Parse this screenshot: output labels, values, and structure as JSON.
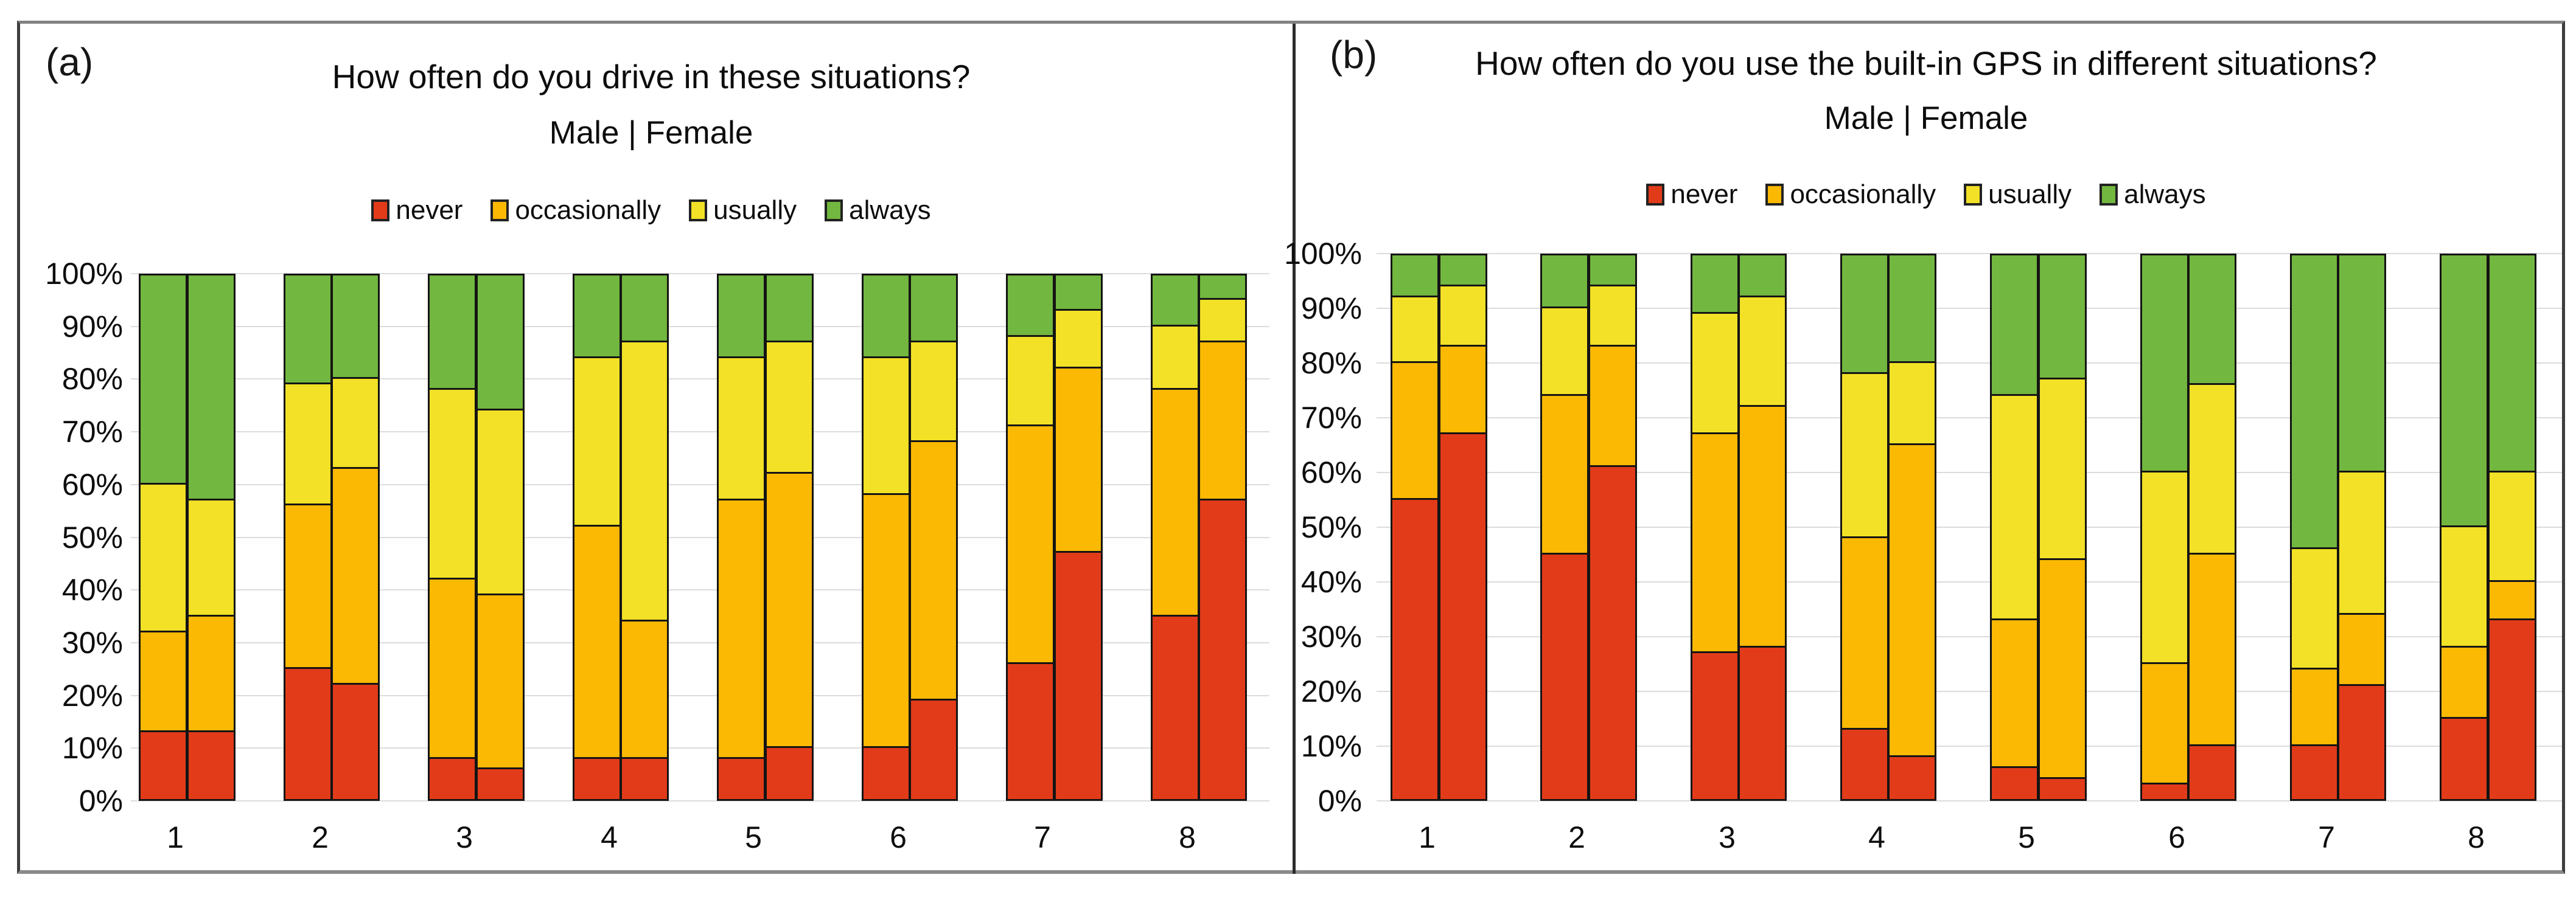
{
  "figure": {
    "background": "#ffffff",
    "frame_border_top_color": "#828282",
    "frame_border_side_color": "#3d3d3d",
    "gridline_color": "#dcdcdc",
    "bar_border_color": "#141414"
  },
  "chart_data": [
    {
      "type": "bar",
      "variant": "stacked-100pct-paired",
      "panel_label": "(a)",
      "title": "How often do you drive in these situations?",
      "subtitle": "Male   |   Female",
      "legend": [
        "never",
        "occasionally",
        "usually",
        "always"
      ],
      "legend_position": "top",
      "grid": "horizontal",
      "colors": [
        "#E23B1A",
        "#FBB903",
        "#F2E126",
        "#72B73F"
      ],
      "y_ticks": [
        "100%",
        "90%",
        "80%",
        "70%",
        "60%",
        "50%",
        "40%",
        "30%",
        "20%",
        "10%",
        "0%"
      ],
      "ylim": [
        0,
        100
      ],
      "categories": [
        "1",
        "2",
        "3",
        "4",
        "5",
        "6",
        "7",
        "8"
      ],
      "series": [
        {
          "name": "Male",
          "stacks": [
            [
              13,
              19,
              28,
              40
            ],
            [
              25,
              31,
              23,
              21
            ],
            [
              8,
              34,
              36,
              22
            ],
            [
              8,
              44,
              32,
              16
            ],
            [
              8,
              49,
              27,
              16
            ],
            [
              10,
              48,
              26,
              16
            ],
            [
              26,
              45,
              17,
              12
            ],
            [
              35,
              43,
              12,
              10
            ]
          ]
        },
        {
          "name": "Female",
          "stacks": [
            [
              13,
              22,
              22,
              43
            ],
            [
              22,
              41,
              17,
              20
            ],
            [
              6,
              33,
              35,
              26
            ],
            [
              8,
              26,
              53,
              13
            ],
            [
              10,
              52,
              25,
              13
            ],
            [
              19,
              49,
              19,
              13
            ],
            [
              47,
              35,
              11,
              7
            ],
            [
              57,
              30,
              8,
              5
            ]
          ]
        }
      ]
    },
    {
      "type": "bar",
      "variant": "stacked-100pct-paired",
      "panel_label": "(b)",
      "title": "How often do you use the built-in GPS in different situations?",
      "subtitle": "Male  |  Female",
      "legend": [
        "never",
        "occasionally",
        "usually",
        "always"
      ],
      "legend_position": "top",
      "grid": "horizontal",
      "colors": [
        "#E23B1A",
        "#FBB903",
        "#F2E126",
        "#72B73F"
      ],
      "y_ticks": [
        "100%",
        "90%",
        "80%",
        "70%",
        "60%",
        "50%",
        "40%",
        "30%",
        "20%",
        "10%",
        "0%"
      ],
      "ylim": [
        0,
        100
      ],
      "categories": [
        "1",
        "2",
        "3",
        "4",
        "5",
        "6",
        "7",
        "8"
      ],
      "series": [
        {
          "name": "Male",
          "stacks": [
            [
              55,
              25,
              12,
              8
            ],
            [
              45,
              29,
              16,
              10
            ],
            [
              27,
              40,
              22,
              11
            ],
            [
              13,
              35,
              30,
              22
            ],
            [
              6,
              27,
              41,
              26
            ],
            [
              3,
              22,
              35,
              40
            ],
            [
              10,
              14,
              22,
              54
            ],
            [
              15,
              13,
              22,
              50
            ]
          ]
        },
        {
          "name": "Female",
          "stacks": [
            [
              67,
              16,
              11,
              6
            ],
            [
              61,
              22,
              11,
              6
            ],
            [
              28,
              44,
              20,
              8
            ],
            [
              8,
              57,
              15,
              20
            ],
            [
              4,
              40,
              33,
              23
            ],
            [
              10,
              35,
              31,
              24
            ],
            [
              21,
              13,
              26,
              40
            ],
            [
              33,
              7,
              20,
              40
            ]
          ]
        }
      ]
    }
  ]
}
